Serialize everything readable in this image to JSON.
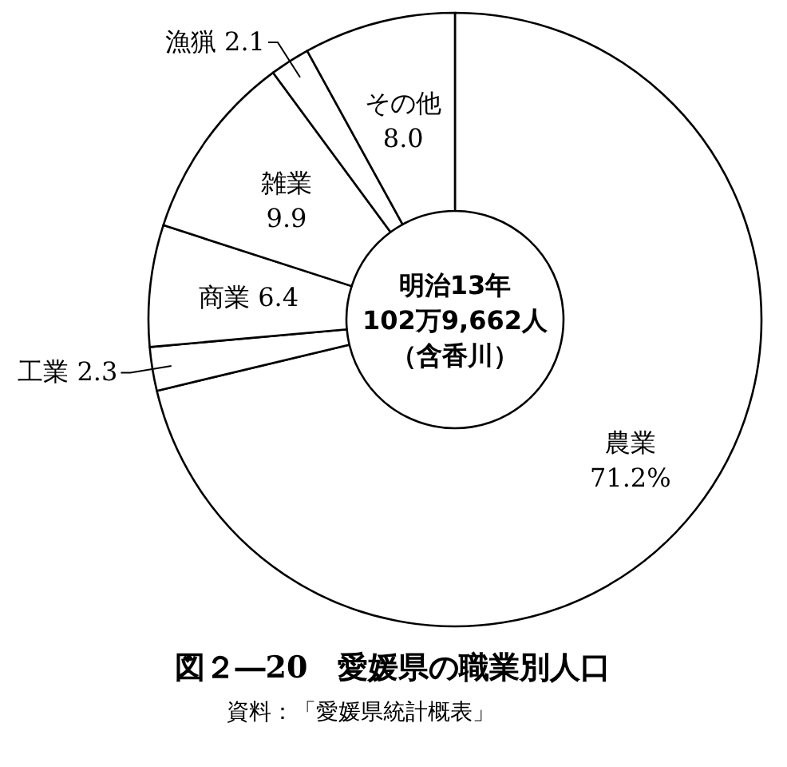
{
  "chart_data": {
    "type": "donut",
    "title": "図２―20　愛媛県の職業別人口",
    "categories": [
      "農業",
      "工業",
      "商業",
      "雑業",
      "漁猟",
      "その他"
    ],
    "values": [
      71.2,
      2.3,
      6.4,
      9.9,
      2.1,
      8.0
    ],
    "value_labels": [
      "71.2%",
      "2.3",
      "6.4",
      "9.9",
      "2.1",
      "8.0"
    ],
    "colors": [
      "#ffffff",
      "#ffffff",
      "#ffffff",
      "#ffffff",
      "#ffffff",
      "#ffffff"
    ],
    "annotations": [
      "明治13年",
      "102万9,662人",
      "（含香川）",
      "資料：「愛媛県統計概表」"
    ]
  }
}
